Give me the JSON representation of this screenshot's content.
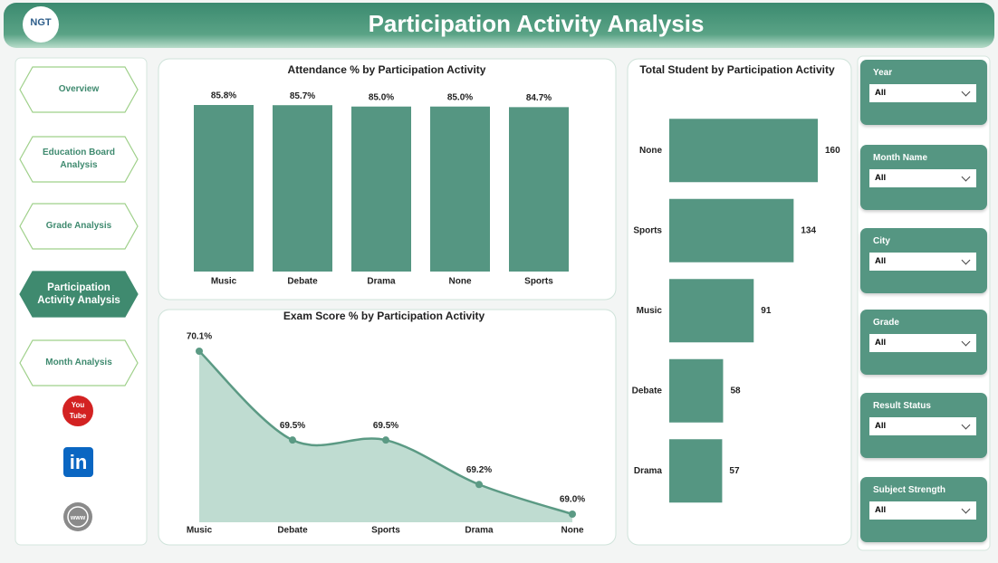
{
  "header": {
    "logo": "NGT",
    "title": "Participation Activity Analysis"
  },
  "nav": [
    "Overview",
    "Education Board Analysis",
    "Grade Analysis",
    "Participation Activity Analysis",
    "Month Analysis"
  ],
  "icons": {
    "youtube": [
      "You",
      "Tube"
    ],
    "linkedin": "in",
    "web": "www"
  },
  "filters": [
    {
      "label": "Year",
      "value": "All"
    },
    {
      "label": "Month Name",
      "value": "All"
    },
    {
      "label": "City",
      "value": "All"
    },
    {
      "label": "Grade",
      "value": "All"
    },
    {
      "label": "Result Status",
      "value": "All"
    },
    {
      "label": "Subject Strength",
      "value": "All"
    }
  ],
  "chart_data": [
    {
      "type": "bar",
      "title": "Attendance % by Participation Activity",
      "categories": [
        "Music",
        "Debate",
        "Drama",
        "None",
        "Sports"
      ],
      "values": [
        85.8,
        85.7,
        85.0,
        85.0,
        84.7
      ],
      "value_labels": [
        "85.8%",
        "85.7%",
        "85.0%",
        "85.0%",
        "84.7%"
      ],
      "color": "#559682"
    },
    {
      "type": "area",
      "title": "Exam Score % by Participation Activity",
      "categories": [
        "Music",
        "Debate",
        "Sports",
        "Drama",
        "None"
      ],
      "values": [
        70.1,
        69.5,
        69.5,
        69.2,
        69.0
      ],
      "value_labels": [
        "70.1%",
        "69.5%",
        "69.5%",
        "69.2%",
        "69.0%"
      ],
      "color": "#5b9a84"
    },
    {
      "type": "hbar",
      "title": "Total Student by Participation Activity",
      "categories": [
        "None",
        "Sports",
        "Music",
        "Debate",
        "Drama"
      ],
      "values": [
        160,
        134,
        91,
        58,
        57
      ],
      "color": "#559682"
    }
  ]
}
